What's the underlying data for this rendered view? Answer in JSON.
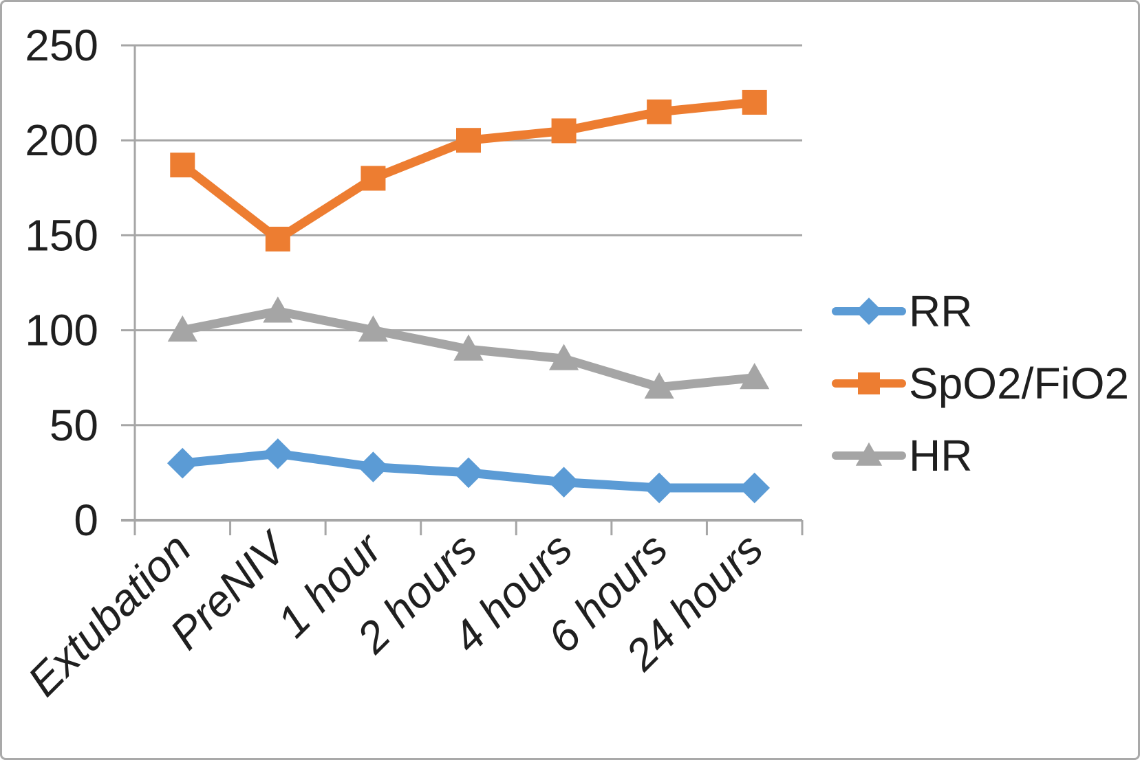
{
  "chart_data": {
    "type": "line",
    "categories": [
      "Extubation",
      "PreNIV",
      "1 hour",
      "2 hours",
      "4 hours",
      "6 hours",
      "24 hours"
    ],
    "series": [
      {
        "name": "RR",
        "marker": "diamond",
        "color": "#5B9BD5",
        "values": [
          30,
          35,
          28,
          25,
          20,
          17,
          17
        ]
      },
      {
        "name": "SpO2/FiO2",
        "marker": "square",
        "color": "#ED7D31",
        "values": [
          187,
          148,
          180,
          200,
          205,
          215,
          220
        ]
      },
      {
        "name": "HR",
        "marker": "triangle",
        "color": "#A5A5A5",
        "values": [
          100,
          110,
          100,
          90,
          85,
          70,
          75
        ]
      }
    ],
    "y_axis": {
      "min": 0,
      "max": 250,
      "step": 50,
      "tick_labels": [
        "0",
        "50",
        "100",
        "150",
        "200",
        "250"
      ]
    },
    "x_axis": {
      "tick_labels_rotated": true
    },
    "grid": true,
    "legend_position": "right",
    "legend_labels": [
      "RR",
      "SpO2/FiO2",
      "HR"
    ],
    "title": "",
    "xlabel": "",
    "ylabel": ""
  },
  "colors": {
    "series_rr": "#5B9BD5",
    "series_spo2_fio2": "#ED7D31",
    "series_hr": "#A5A5A5",
    "gridline": "#A6A6A6",
    "axis": "#A6A6A6",
    "text": "#1f1f1f",
    "figure_border": "#a9a9a9",
    "background": "#ffffff"
  }
}
